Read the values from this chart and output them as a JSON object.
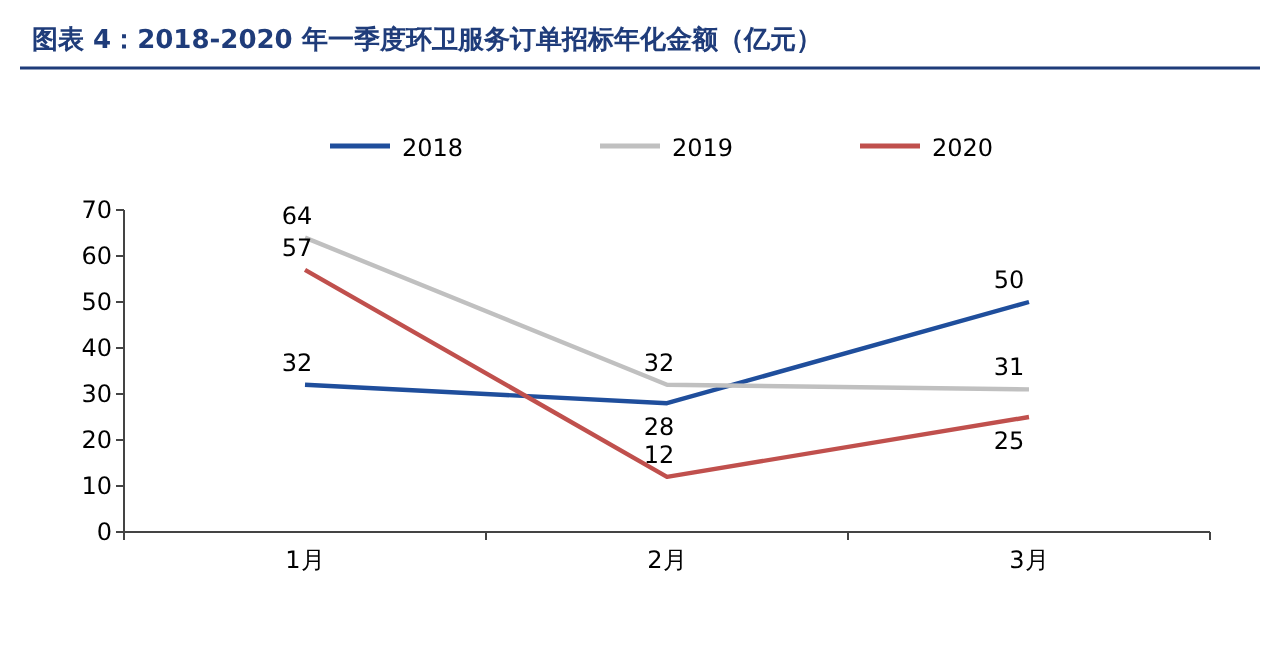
{
  "chart_data": {
    "type": "line",
    "title": "图表 4：2018-2020 年一季度环卫服务订单招标年化金额（亿元）",
    "categories": [
      "1月",
      "2月",
      "3月"
    ],
    "series": [
      {
        "name": "2018",
        "color": "#1f4e9c",
        "values": [
          32,
          28,
          50
        ]
      },
      {
        "name": "2019",
        "color": "#c0c0c0",
        "values": [
          64,
          32,
          31
        ]
      },
      {
        "name": "2020",
        "color": "#c0504d",
        "values": [
          57,
          12,
          25
        ]
      }
    ],
    "ylim": [
      0,
      70
    ],
    "yticks": [
      0,
      10,
      20,
      30,
      40,
      50,
      60,
      70
    ],
    "data_labels": true,
    "legend": "top",
    "grid": false,
    "marker": "none",
    "line_style": "solid"
  }
}
